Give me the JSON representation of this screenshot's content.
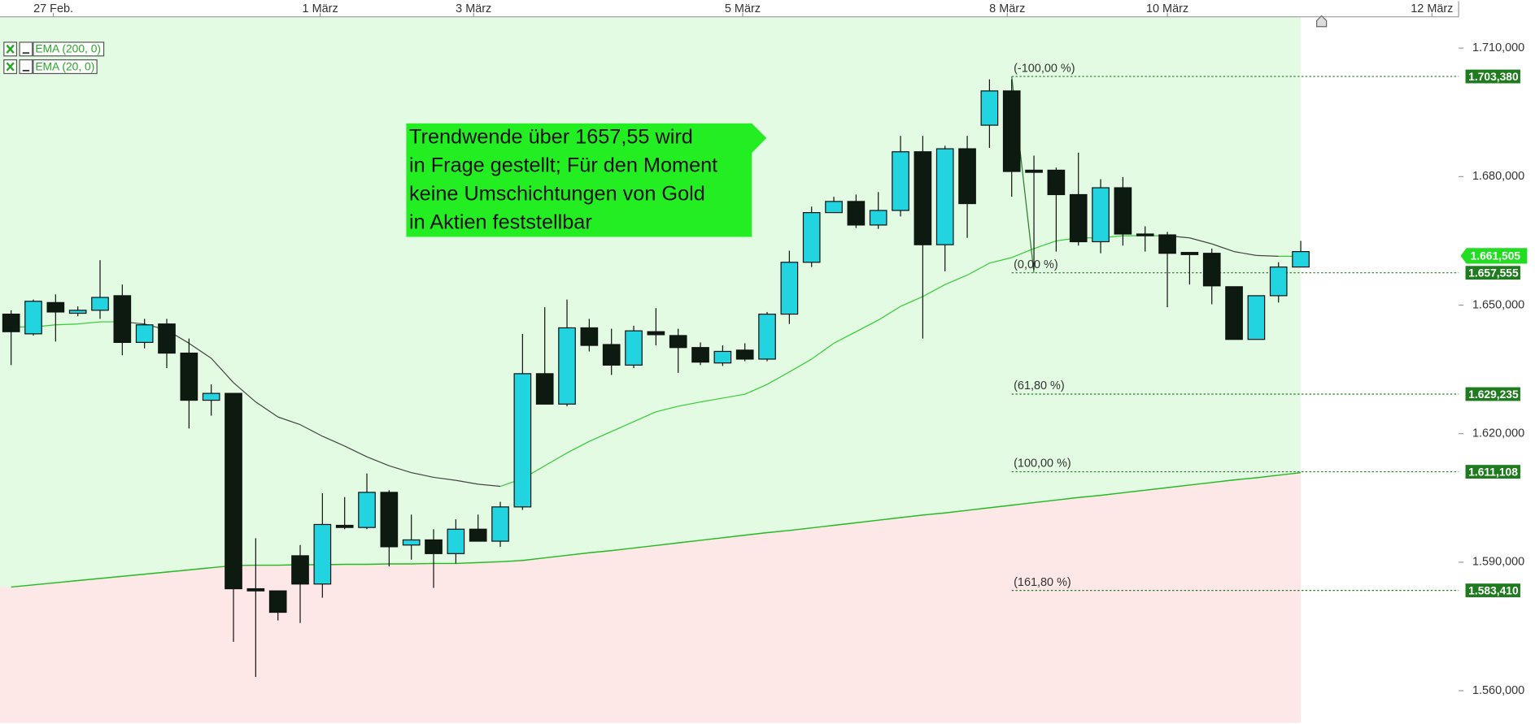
{
  "chart_data": {
    "type": "candlestick",
    "x": [
      0,
      1,
      2,
      3,
      4,
      5,
      6,
      7,
      8,
      9,
      10,
      11,
      12,
      13,
      14,
      15,
      16,
      17,
      18,
      19,
      20,
      21,
      22,
      23,
      24,
      25,
      26,
      27,
      28,
      29,
      30,
      31,
      32,
      33,
      34,
      35,
      36,
      37,
      38,
      39,
      40,
      41,
      42,
      43,
      44,
      45,
      46,
      47,
      48,
      49,
      50,
      51,
      52,
      53,
      54,
      55,
      56,
      57,
      58
    ],
    "open": [
      1647.9,
      1643.3,
      1650.6,
      1648.1,
      1648.8,
      1652.2,
      1641.3,
      1645.6,
      1638.8,
      1627.8,
      1629.4,
      1583.8,
      1583.3,
      1591.5,
      1584.9,
      1598.6,
      1598.1,
      1606.3,
      1594.0,
      1595.2,
      1592.0,
      1597.7,
      1594.9,
      1602.9,
      1634.0,
      1626.9,
      1644.7,
      1640.8,
      1636.0,
      1643.8,
      1642.9,
      1640.1,
      1636.5,
      1639.5,
      1637.4,
      1647.9,
      1660.0,
      1671.6,
      1674.2,
      1668.7,
      1672.1,
      1685.8,
      1664.1,
      1686.5,
      1692.0,
      1700.0,
      1681.5,
      1681.5,
      1675.8,
      1664.8,
      1677.4,
      1666.6,
      1666.4,
      1662.3,
      1662.1,
      1654.3,
      1642.0,
      1652.2,
      1658.9
    ],
    "high": [
      1648.8,
      1651.3,
      1652.5,
      1649.7,
      1660.5,
      1654.8,
      1646.8,
      1646.8,
      1642.2,
      1631.5,
      1629.4,
      1595.6,
      1583.3,
      1594.0,
      1606.1,
      1605.2,
      1610.7,
      1606.8,
      1601.1,
      1597.7,
      1600.0,
      1601.1,
      1604.1,
      1643.3,
      1649.5,
      1651.3,
      1646.8,
      1644.5,
      1645.2,
      1649.3,
      1644.5,
      1641.3,
      1640.6,
      1641.1,
      1648.4,
      1662.7,
      1673.0,
      1675.3,
      1675.8,
      1676.4,
      1689.5,
      1689.5,
      1687.2,
      1689.5,
      1702.7,
      1702.7,
      1684.9,
      1682.1,
      1685.6,
      1679.4,
      1679.9,
      1668.4,
      1667.1,
      1662.3,
      1663.2,
      1654.3,
      1652.2,
      1660.0,
      1665.0
    ],
    "low": [
      1636.0,
      1642.9,
      1641.5,
      1647.4,
      1646.8,
      1638.3,
      1639.9,
      1635.3,
      1621.2,
      1624.2,
      1571.4,
      1563.2,
      1576.4,
      1575.8,
      1581.7,
      1597.7,
      1597.7,
      1589.0,
      1590.6,
      1584.0,
      1589.7,
      1594.9,
      1593.6,
      1602.2,
      1626.9,
      1626.4,
      1639.2,
      1633.7,
      1635.3,
      1640.6,
      1634.2,
      1636.0,
      1635.8,
      1636.9,
      1636.9,
      1645.6,
      1658.9,
      1671.6,
      1668.0,
      1667.8,
      1670.7,
      1642.2,
      1657.9,
      1665.7,
      1686.7,
      1675.3,
      1658.2,
      1662.5,
      1663.9,
      1662.1,
      1663.9,
      1662.5,
      1649.5,
      1654.8,
      1650.2,
      1642.0,
      1642.0,
      1650.6,
      1658.9
    ],
    "close": [
      1643.8,
      1650.9,
      1648.4,
      1648.8,
      1651.8,
      1641.3,
      1645.4,
      1638.8,
      1627.8,
      1629.4,
      1583.8,
      1583.3,
      1578.3,
      1584.9,
      1598.8,
      1598.1,
      1606.3,
      1593.6,
      1595.2,
      1592.0,
      1597.7,
      1594.9,
      1602.9,
      1634.0,
      1626.9,
      1644.7,
      1640.6,
      1636.0,
      1644.0,
      1643.1,
      1640.1,
      1636.7,
      1639.2,
      1637.4,
      1647.9,
      1660.0,
      1671.6,
      1674.2,
      1668.7,
      1672.1,
      1685.8,
      1664.1,
      1686.5,
      1673.7,
      1700.0,
      1681.2,
      1681.0,
      1675.8,
      1664.8,
      1677.4,
      1666.6,
      1666.2,
      1662.1,
      1661.8,
      1654.5,
      1642.0,
      1652.2,
      1658.9,
      1662.5
    ],
    "up_color": "#22d3e0",
    "down_color": "#0c1a10",
    "series": [
      {
        "name": "EMA (200, 0)",
        "color": "#22bb22",
        "values": [
          1584.2,
          1584.7,
          1585.2,
          1585.7,
          1586.2,
          1586.7,
          1587.2,
          1587.7,
          1588.2,
          1588.7,
          1589.2,
          1589.3,
          1589.3,
          1589.4,
          1589.4,
          1589.5,
          1589.5,
          1589.6,
          1589.6,
          1589.7,
          1589.7,
          1589.9,
          1590.1,
          1590.4,
          1591.0,
          1591.6,
          1592.2,
          1592.7,
          1593.3,
          1593.9,
          1594.5,
          1595.1,
          1595.7,
          1596.3,
          1596.9,
          1597.4,
          1598.0,
          1598.6,
          1599.2,
          1599.8,
          1600.4,
          1601.0,
          1601.5,
          1602.1,
          1602.7,
          1603.3,
          1603.9,
          1604.5,
          1605.1,
          1605.6,
          1606.2,
          1606.8,
          1607.4,
          1608.0,
          1608.6,
          1609.2,
          1609.7,
          1610.3,
          1610.9
        ]
      },
      {
        "name": "EMA (20, 0)",
        "color": "#33cc33",
        "color_falling": "#444444",
        "values": [
          1644.9,
          1644.9,
          1645.4,
          1645.6,
          1646.1,
          1646.1,
          1645.6,
          1644.2,
          1641.1,
          1637.6,
          1631.9,
          1627.4,
          1623.9,
          1622.1,
          1619.4,
          1617.1,
          1614.6,
          1612.5,
          1610.9,
          1609.8,
          1609.1,
          1608.2,
          1607.7,
          1609.5,
          1612.5,
          1615.5,
          1618.2,
          1620.5,
          1622.8,
          1625.1,
          1626.4,
          1627.4,
          1628.3,
          1629.2,
          1631.5,
          1634.4,
          1637.4,
          1641.1,
          1643.8,
          1646.5,
          1649.7,
          1652.0,
          1654.8,
          1657.0,
          1659.8,
          1661.1,
          1663.2,
          1665.0,
          1665.7,
          1665.7,
          1666.2,
          1666.2,
          1666.2,
          1665.7,
          1664.3,
          1662.5,
          1661.6,
          1661.4,
          1661.4
        ]
      }
    ],
    "bg_above": "#e3fbe3",
    "bg_below": "#fde7e7",
    "xlim": [
      -0.5,
      65.1
    ],
    "xticks": [
      {
        "value": 1.9,
        "label": "27 Feb."
      },
      {
        "value": 13.9,
        "label": "1 März"
      },
      {
        "value": 20.8,
        "label": "3 März"
      },
      {
        "value": 32.9,
        "label": "5 März"
      },
      {
        "value": 44.8,
        "label": "8 März"
      },
      {
        "value": 52.0,
        "label": "10 März"
      },
      {
        "value": 63.9,
        "label": "12 März"
      }
    ],
    "ylim": [
      1552.5,
      1717.3
    ],
    "yticks": [
      {
        "value": 1710,
        "label": "1.710,000"
      },
      {
        "value": 1680,
        "label": "1.680,000"
      },
      {
        "value": 1650,
        "label": "1.650,000"
      },
      {
        "value": 1620,
        "label": "1.620,000"
      },
      {
        "value": 1590,
        "label": "1.590,000"
      },
      {
        "value": 1560,
        "label": "1.560,000"
      }
    ],
    "fibonacci": {
      "anchor_x": [
        45,
        46
      ],
      "color": "#2a7a2a",
      "levels": [
        {
          "label": "(-100,00 %)",
          "value": 1703.38,
          "value_label": "1.703,380"
        },
        {
          "label": "(0,00 %)",
          "value": 1657.555,
          "value_label": "1.657,555"
        },
        {
          "label": "(61,80 %)",
          "value": 1629.235,
          "value_label": "1.629,235"
        },
        {
          "label": "(100,00 %)",
          "value": 1611.108,
          "value_label": "1.611,108"
        },
        {
          "label": "(161,80 %)",
          "value": 1583.41,
          "value_label": "1.583,410"
        }
      ]
    },
    "last_price": {
      "value": 1661.505,
      "label": "1.661,505",
      "color": "#22dd22"
    },
    "annotation": {
      "lines": [
        "Trendwende über 1657,55 wird",
        "in Frage gestellt; Für den Moment",
        "keine Umschichtungen von Gold",
        "in Aktien feststellbar"
      ],
      "color": "#22ee22"
    }
  }
}
